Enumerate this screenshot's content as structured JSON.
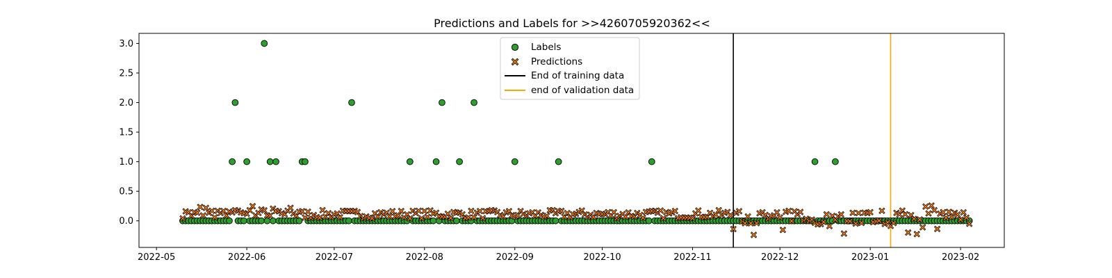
{
  "chart_data": {
    "type": "scatter",
    "title": "Predictions and Labels for >>4260705920362<<",
    "xlabel": "",
    "ylabel": "",
    "x_range": [
      "2022-04-25",
      "2023-02-16"
    ],
    "ylim": [
      -0.45,
      3.17
    ],
    "x_ticks": [
      "2022-05",
      "2022-06",
      "2022-07",
      "2022-08",
      "2022-09",
      "2022-10",
      "2022-11",
      "2022-12",
      "2023-01",
      "2023-02"
    ],
    "y_ticks": [
      "0.0",
      "0.5",
      "1.0",
      "1.5",
      "2.0",
      "2.5",
      "3.0"
    ],
    "y_tick_values": [
      0.0,
      0.5,
      1.0,
      1.5,
      2.0,
      2.5,
      3.0
    ],
    "start_date": "2022-05-10",
    "end_date": "2023-02-04",
    "nonzero_labels": [
      {
        "x": "2022-05-27",
        "y": 1
      },
      {
        "x": "2022-05-28",
        "y": 2
      },
      {
        "x": "2022-06-01",
        "y": 1
      },
      {
        "x": "2022-06-07",
        "y": 3
      },
      {
        "x": "2022-06-09",
        "y": 1
      },
      {
        "x": "2022-06-11",
        "y": 1
      },
      {
        "x": "2022-06-20",
        "y": 1
      },
      {
        "x": "2022-06-21",
        "y": 1
      },
      {
        "x": "2022-07-07",
        "y": 2
      },
      {
        "x": "2022-07-27",
        "y": 1
      },
      {
        "x": "2022-08-05",
        "y": 1
      },
      {
        "x": "2022-08-07",
        "y": 2
      },
      {
        "x": "2022-08-13",
        "y": 1
      },
      {
        "x": "2022-08-18",
        "y": 2
      },
      {
        "x": "2022-09-01",
        "y": 1
      },
      {
        "x": "2022-09-16",
        "y": 1
      },
      {
        "x": "2022-10-18",
        "y": 1
      },
      {
        "x": "2022-12-13",
        "y": 1
      },
      {
        "x": "2022-12-20",
        "y": 1
      }
    ],
    "vlines": [
      {
        "name": "End of training data",
        "x": "2022-11-15",
        "color": "#000000"
      },
      {
        "name": "end of validation data",
        "x": "2023-01-08",
        "color": "#ffa500"
      }
    ],
    "series": [
      {
        "name": "Labels",
        "marker": "circle",
        "color": "#2ca02c",
        "edge": "#000000",
        "default_value": 0.0
      },
      {
        "name": "Predictions",
        "marker": "x",
        "color": "#ff7f0e",
        "edge": "#000000"
      }
    ],
    "legend_position": "upper center",
    "grid": false
  }
}
